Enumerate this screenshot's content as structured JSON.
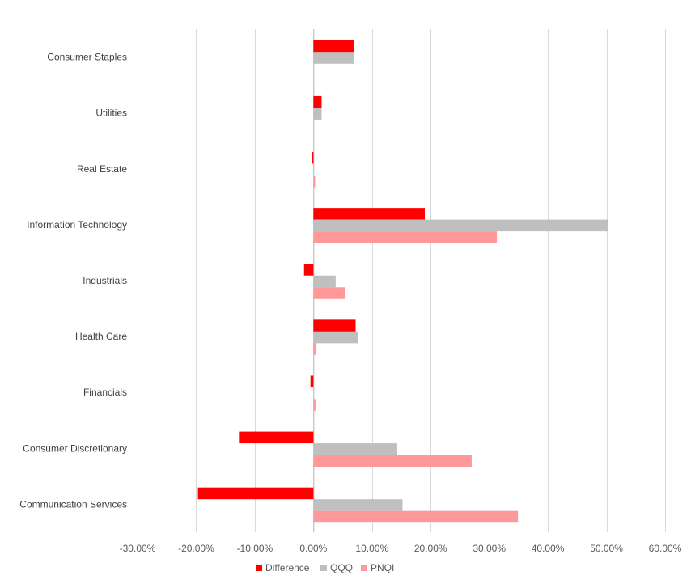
{
  "chart_data": {
    "type": "bar",
    "orientation": "horizontal",
    "title": "",
    "xlabel": "",
    "ylabel": "",
    "xlim": [
      -0.3,
      0.6
    ],
    "x_ticks": [
      -0.3,
      -0.2,
      -0.1,
      0.0,
      0.1,
      0.2,
      0.3,
      0.4,
      0.5,
      0.6
    ],
    "x_tick_labels": [
      "-30.00%",
      "-20.00%",
      "-10.00%",
      "0.00%",
      "10.00%",
      "20.00%",
      "30.00%",
      "40.00%",
      "50.00%",
      "60.00%"
    ],
    "grid": true,
    "legend_position": "bottom",
    "categories": [
      "Consumer Staples",
      "Utilities",
      "Real Estate",
      "Information Technology",
      "Industrials",
      "Health Care",
      "Financials",
      "Consumer Discretionary",
      "Communication Services"
    ],
    "series": [
      {
        "name": "Difference",
        "color": "#ff0000",
        "values": [
          0.069,
          0.014,
          -0.003,
          0.19,
          -0.016,
          0.072,
          -0.005,
          -0.127,
          -0.197
        ]
      },
      {
        "name": "QQQ",
        "color": "#bfbfbf",
        "values": [
          0.069,
          0.014,
          0.0,
          0.503,
          0.038,
          0.076,
          0.0,
          0.143,
          0.152
        ]
      },
      {
        "name": "PNQI",
        "color": "#ff9999",
        "values": [
          0.0,
          0.0,
          0.003,
          0.313,
          0.054,
          0.004,
          0.005,
          0.27,
          0.349
        ]
      }
    ]
  }
}
